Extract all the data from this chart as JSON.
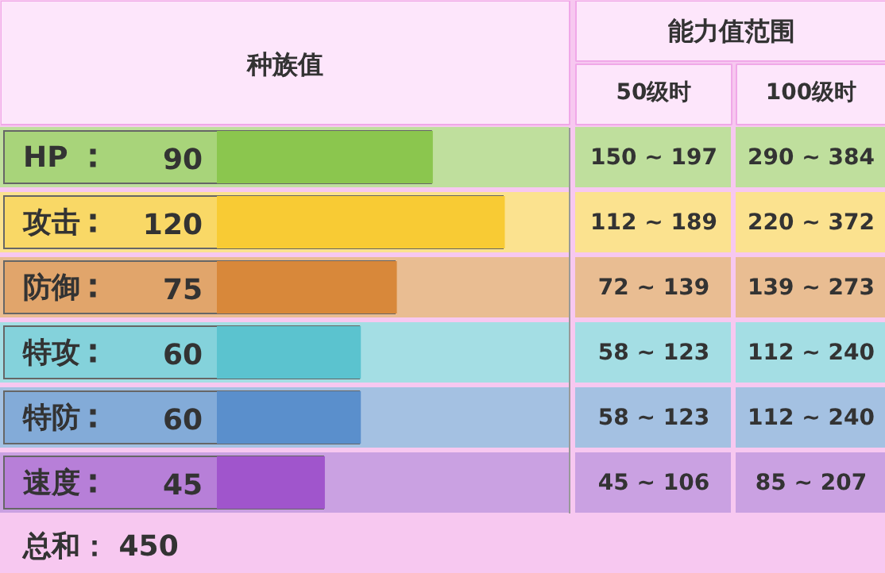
{
  "chart_data": {
    "type": "bar",
    "orientation": "horizontal",
    "title": "种族值",
    "categories": [
      "HP",
      "攻击",
      "防御",
      "特攻",
      "特防",
      "速度"
    ],
    "values": [
      90,
      120,
      75,
      60,
      60,
      45
    ],
    "colors": [
      "#8bc64e",
      "#f8cb34",
      "#d8883a",
      "#5bc3cf",
      "#5a8fcc",
      "#a055cc"
    ],
    "xlim": [
      0,
      147
    ],
    "data_labels": true,
    "tick_labels": false,
    "grid": false,
    "annotations": [
      "能力值范围",
      "50级时",
      "100级时",
      "150 ~ 197",
      "290 ~ 384",
      "112 ~ 189",
      "220 ~ 372",
      "72 ~ 139",
      "139 ~ 273",
      "58 ~ 123",
      "112 ~ 240",
      "58 ~ 123",
      "112 ~ 240",
      "45 ~ 106",
      "85 ~ 207",
      "总和：  450"
    ]
  }
}
